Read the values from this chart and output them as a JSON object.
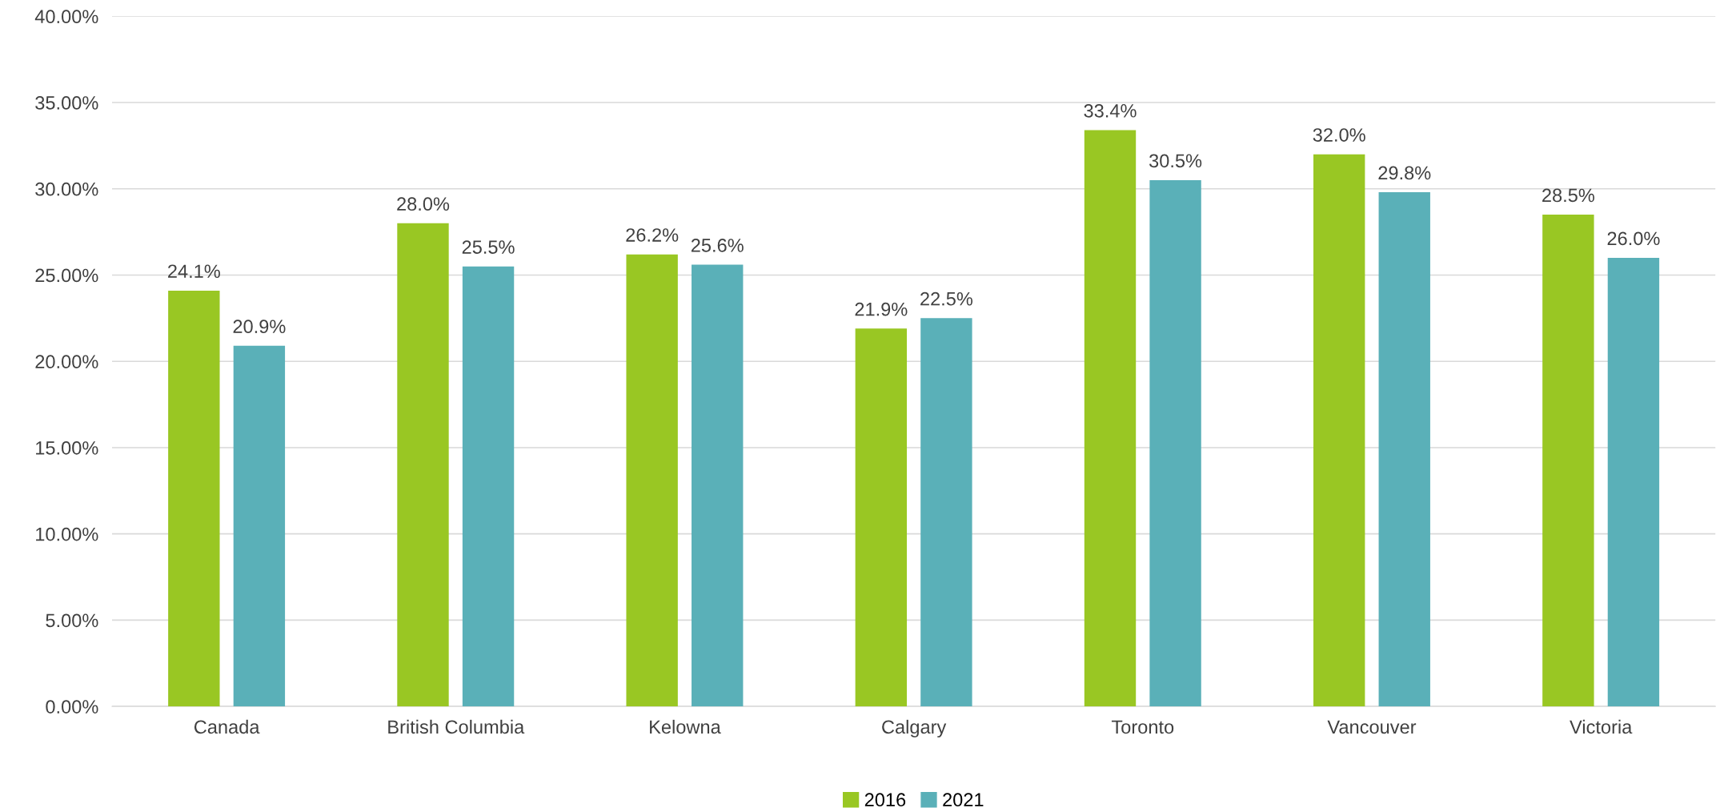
{
  "chart_data": {
    "type": "bar",
    "categories": [
      "Canada",
      "British Columbia",
      "Kelowna",
      "Calgary",
      "Toronto",
      "Vancouver",
      "Victoria"
    ],
    "series": [
      {
        "name": "2016",
        "color": "#99c723",
        "values": [
          24.1,
          28.0,
          26.2,
          21.9,
          33.4,
          32.0,
          28.5
        ],
        "value_labels": [
          "24.1%",
          "28.0%",
          "26.2%",
          "21.9%",
          "33.4%",
          "32.0%",
          "28.5%"
        ]
      },
      {
        "name": "2021",
        "color": "#5ab0b8",
        "values": [
          20.9,
          25.5,
          25.6,
          22.5,
          30.5,
          29.8,
          26.0
        ],
        "value_labels": [
          "20.9%",
          "25.5%",
          "25.6%",
          "22.5%",
          "30.5%",
          "29.8%",
          "26.0%"
        ]
      }
    ],
    "ylim": [
      0,
      40
    ],
    "yticks": [
      {
        "value": 0,
        "label": "0.00%"
      },
      {
        "value": 5,
        "label": "5.00%"
      },
      {
        "value": 10,
        "label": "10.00%"
      },
      {
        "value": 15,
        "label": "15.00%"
      },
      {
        "value": 20,
        "label": "20.00%"
      },
      {
        "value": 25,
        "label": "25.00%"
      },
      {
        "value": 30,
        "label": "30.00%"
      },
      {
        "value": 35,
        "label": "35.00%"
      },
      {
        "value": 40,
        "label": "40.00%"
      }
    ],
    "grid": "y",
    "legend": "bottom"
  }
}
